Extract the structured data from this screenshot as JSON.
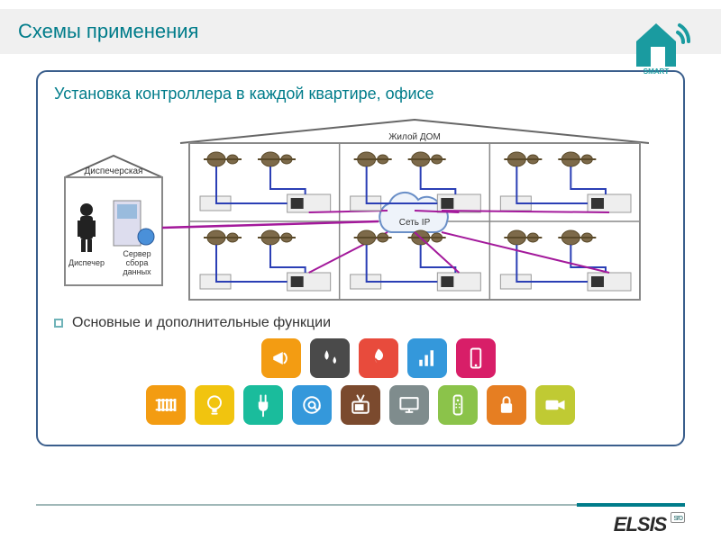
{
  "slide": {
    "title": "Схемы применения",
    "subtitle": "Установка контроллера в каждой квартире, офисе",
    "functions_label": "Основные и дополнительные функции",
    "footer_brand": "ELSIS",
    "footer_suffix": "sro"
  },
  "brand": {
    "name": "SMART HOUSE",
    "house_color": "#1a9ba0",
    "roof_color": "#1a9ba0"
  },
  "diagram": {
    "house_label": "Жилой ДОМ",
    "dispatch_label": "Диспечерская",
    "dispatcher_label": "Диспечер",
    "server_label_1": "Сервер",
    "server_label_2": "сбора",
    "server_label_3": "данных",
    "cloud_label": "Сеть IP",
    "colors": {
      "roof": "#666666",
      "wall": "#888888",
      "wire_blue": "#2b3fb5",
      "wire_magenta": "#a3199b",
      "meter": "#7d6a4a",
      "controller_body": "#eeeeee",
      "controller_edge": "#999999",
      "cloud_border": "#6a8fc7",
      "cloud_fill": "#eef3fa",
      "text": "#333333"
    },
    "rooms_grid": {
      "cols": 3,
      "rows": 2
    }
  },
  "icons": {
    "top": [
      {
        "name": "megaphone",
        "bg": "#f39c12"
      },
      {
        "name": "water-drops",
        "bg": "#4a4a4a"
      },
      {
        "name": "flame",
        "bg": "#e84b3c"
      },
      {
        "name": "bar-chart",
        "bg": "#3498db"
      },
      {
        "name": "mobile",
        "bg": "#d81e68"
      }
    ],
    "bottom": [
      {
        "name": "radiator",
        "bg": "#f39c12"
      },
      {
        "name": "bulb",
        "bg": "#f1c40f"
      },
      {
        "name": "plug",
        "bg": "#1abc9c"
      },
      {
        "name": "at-sign",
        "bg": "#3498db"
      },
      {
        "name": "tv-old",
        "bg": "#7b4a2e"
      },
      {
        "name": "monitor",
        "bg": "#7f8c8d"
      },
      {
        "name": "remote",
        "bg": "#8bc34a"
      },
      {
        "name": "lock",
        "bg": "#e67e22"
      },
      {
        "name": "camera",
        "bg": "#c0ca33"
      }
    ]
  }
}
